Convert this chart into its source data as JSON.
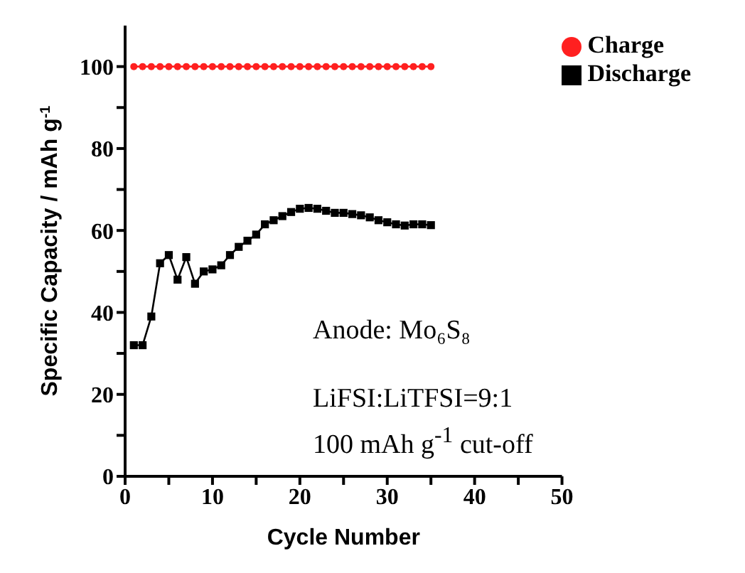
{
  "chart_data": {
    "type": "line",
    "xlabel": "Cycle Number",
    "ylabel": "Specific Capacity / mAh g$^{-1}$",
    "xlim": [
      0,
      50
    ],
    "ylim": [
      0,
      110
    ],
    "xticks": [
      0,
      {
        "value": 5,
        "label": null
      },
      10,
      {
        "value": 15,
        "label": null
      },
      20,
      {
        "value": 25,
        "label": null
      },
      30,
      {
        "value": 35,
        "label": null
      },
      40,
      {
        "value": 45,
        "label": null
      },
      50
    ],
    "yticks": [
      0,
      {
        "value": 10,
        "label": null
      },
      20,
      {
        "value": 30,
        "label": null
      },
      40,
      {
        "value": 50,
        "label": null
      },
      60,
      {
        "value": 70,
        "label": null
      },
      80,
      {
        "value": 90,
        "label": null
      },
      100
    ],
    "x": [
      1,
      2,
      3,
      4,
      5,
      6,
      7,
      8,
      9,
      10,
      11,
      12,
      13,
      14,
      15,
      16,
      17,
      18,
      19,
      20,
      21,
      22,
      23,
      24,
      25,
      26,
      27,
      28,
      29,
      30,
      31,
      32,
      33,
      34,
      35
    ],
    "series": [
      {
        "name": "Charge",
        "color": "#ff2020",
        "marker": "circle",
        "values": [
          100,
          100,
          100,
          100,
          100,
          100,
          100,
          100,
          100,
          100,
          100,
          100,
          100,
          100,
          100,
          100,
          100,
          100,
          100,
          100,
          100,
          100,
          100,
          100,
          100,
          100,
          100,
          100,
          100,
          100,
          100,
          100,
          100,
          100,
          100
        ]
      },
      {
        "name": "Discharge",
        "color": "#000000",
        "marker": "square",
        "values": [
          32,
          32,
          39,
          52,
          54,
          48,
          53.5,
          47,
          50,
          50.5,
          51.5,
          54,
          56,
          57.5,
          59,
          61.5,
          62.5,
          63.5,
          64.5,
          65.3,
          65.5,
          65.3,
          64.8,
          64.3,
          64.3,
          64,
          63.7,
          63.2,
          62.5,
          62,
          61.5,
          61.2,
          61.5,
          61.5,
          61.3
        ]
      }
    ],
    "annotations": [
      "Anode: Mo₆S₈",
      "LiFSI:LiTFSI=9:1",
      "100 mAh g$^{-1}$ cut-off"
    ],
    "legend": "top right",
    "grid": false,
    "line_style": "solid"
  }
}
